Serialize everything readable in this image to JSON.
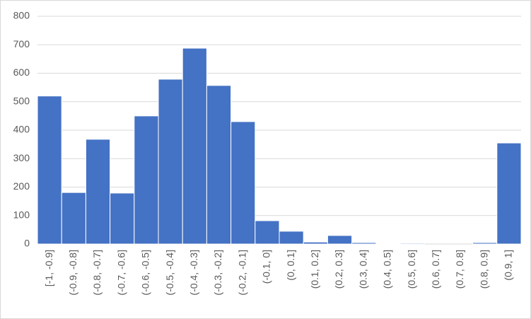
{
  "chart_data": {
    "type": "bar",
    "categories": [
      "[-1, -0.9]",
      "(-0.9, -0.8]",
      "(-0.8, -0.7]",
      "(-0.7, -0.6]",
      "(-0.6, -0.5]",
      "(-0.5, -0.4]",
      "(-0.4, -0.3]",
      "(-0.3, -0.2]",
      "(-0.2, -0.1]",
      "(-0.1, 0]",
      "(0, 0.1]",
      "(0.1, 0.2]",
      "(0.2, 0.3]",
      "(0.3, 0.4]",
      "(0.4, 0.5]",
      "(0.5, 0.6]",
      "(0.6, 0.7]",
      "(0.7, 0.8]",
      "(0.8, 0.9]",
      "(0.9, 1]"
    ],
    "values": [
      520,
      181,
      368,
      179,
      450,
      579,
      688,
      557,
      430,
      82,
      45,
      7,
      30,
      5,
      1,
      3,
      0,
      0,
      5,
      355
    ],
    "color": "#4472c4",
    "ylim": [
      0,
      800
    ],
    "yticks": [
      0,
      100,
      200,
      300,
      400,
      500,
      600,
      700,
      800
    ],
    "grid": true
  }
}
